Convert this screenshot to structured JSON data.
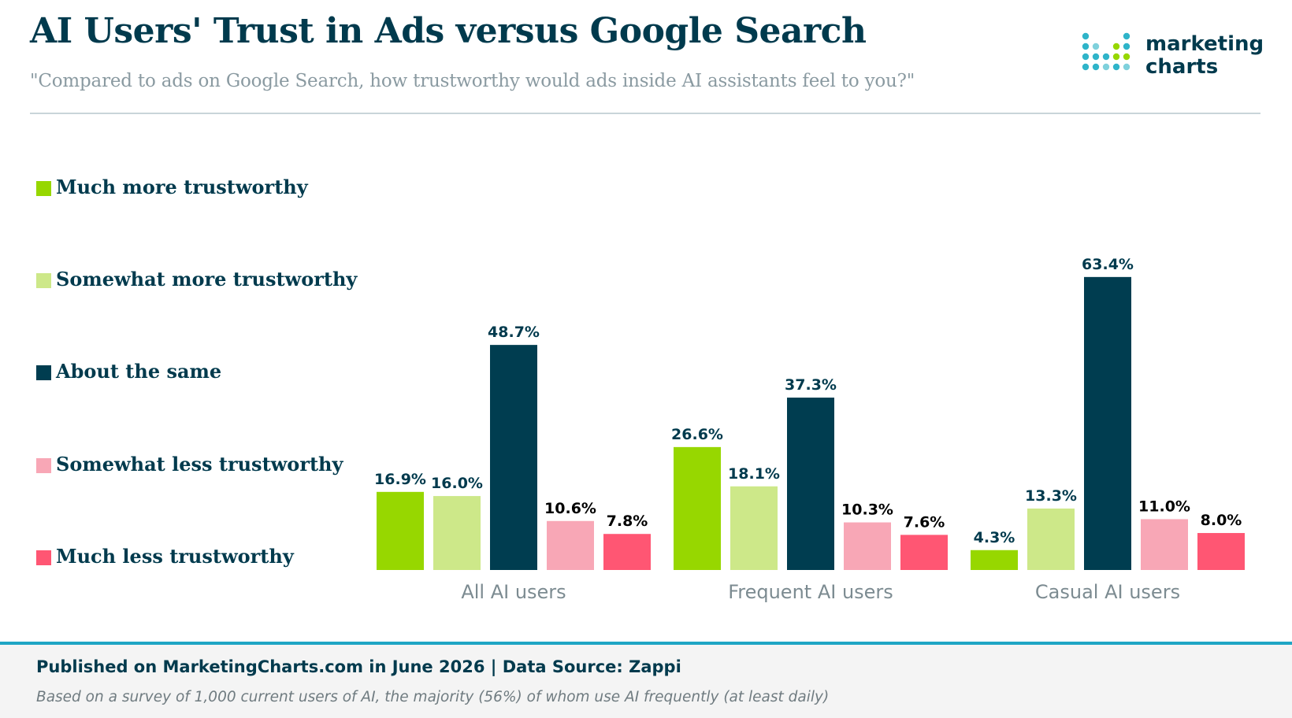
{
  "header": {
    "title": "AI Users' Trust in Ads versus Google Search",
    "subtitle": "\"Compared to ads on Google Search, how trustworthy would ads inside AI assistants feel to you?\"",
    "logo_line1": "marketing",
    "logo_line2": "charts"
  },
  "colors": {
    "much_more": "#97d700",
    "somewhat_more": "#cde889",
    "same": "#003d50",
    "somewhat_less": "#f8a7b6",
    "much_less": "#ff5673",
    "label_dark": "#003a4d",
    "label_black": "#000000"
  },
  "chart_data": {
    "type": "bar",
    "categories": [
      "All AI users",
      "Frequent AI users",
      "Casual AI users"
    ],
    "series": [
      {
        "name": "Much more trustworthy",
        "values": [
          16.9,
          26.6,
          4.3
        ]
      },
      {
        "name": "Somewhat more trustworthy",
        "values": [
          16.0,
          18.1,
          13.3
        ]
      },
      {
        "name": "About the same",
        "values": [
          48.7,
          37.3,
          63.4
        ]
      },
      {
        "name": "Somewhat less trustworthy",
        "values": [
          10.6,
          10.3,
          11.0
        ]
      },
      {
        "name": "Much less trustworthy",
        "values": [
          7.8,
          7.6,
          8.0
        ]
      }
    ],
    "value_labels": [
      [
        "16.9%",
        "26.6%",
        "4.3%"
      ],
      [
        "16.0%",
        "18.1%",
        "13.3%"
      ],
      [
        "48.7%",
        "37.3%",
        "63.4%"
      ],
      [
        "10.6%",
        "10.3%",
        "11.0%"
      ],
      [
        "7.8%",
        "7.6%",
        "8.0%"
      ]
    ],
    "unit": "%",
    "ylim": [
      0,
      65
    ],
    "grid": false,
    "legend_position": "left"
  },
  "footer": {
    "published": "Published on MarketingCharts.com in June 2026 | Data Source: Zappi",
    "note": "Based on a survey of 1,000 current users of AI, the majority (56%) of whom use AI frequently (at least daily)"
  }
}
